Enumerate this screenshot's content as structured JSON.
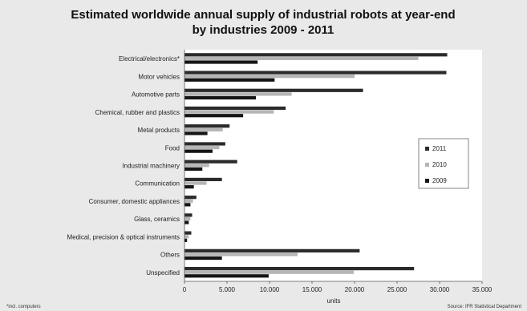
{
  "chart_data": {
    "type": "bar",
    "orientation": "horizontal",
    "title_line1": "Estimated worldwide annual supply of industrial robots at year-end",
    "title_line2": "by industries 2009 - 2011",
    "xlabel": "units",
    "xlim": [
      0,
      35000
    ],
    "xticks": [
      "0",
      "5.000",
      "10.000",
      "15.000",
      "20.000",
      "25.000",
      "30.000",
      "35.000"
    ],
    "grid": false,
    "legend_position": "right",
    "categories": [
      "Electrical/electronics*",
      "Motor vehicles",
      "Automotive parts",
      "Chemical, rubber and plastics",
      "Metal products",
      "Food",
      "Industrial machinery",
      "Communication",
      "Consumer, domestic appliances",
      "Glass, ceramics",
      "Medical, precision & optical instruments",
      "Others",
      "Unspecified"
    ],
    "series": [
      {
        "name": "2011",
        "color": "#2b2b2b",
        "values": [
          30900,
          30800,
          21000,
          11900,
          5300,
          4800,
          6200,
          4400,
          1400,
          900,
          800,
          20600,
          27000
        ]
      },
      {
        "name": "2010",
        "color": "#b5b5b5",
        "values": [
          27500,
          20000,
          12600,
          10500,
          4500,
          4100,
          2900,
          2600,
          1000,
          700,
          500,
          13300,
          19900
        ]
      },
      {
        "name": "2009",
        "color": "#151515",
        "values": [
          8600,
          10600,
          8400,
          6900,
          2700,
          3300,
          2100,
          1100,
          700,
          500,
          300,
          4400,
          9900
        ]
      }
    ],
    "footnote_left": "*incl. computers",
    "footnote_right": "Source: IFR Statistical Department"
  },
  "colors": {
    "background": "#e9e9e9",
    "plot_background": "#ffffff"
  }
}
